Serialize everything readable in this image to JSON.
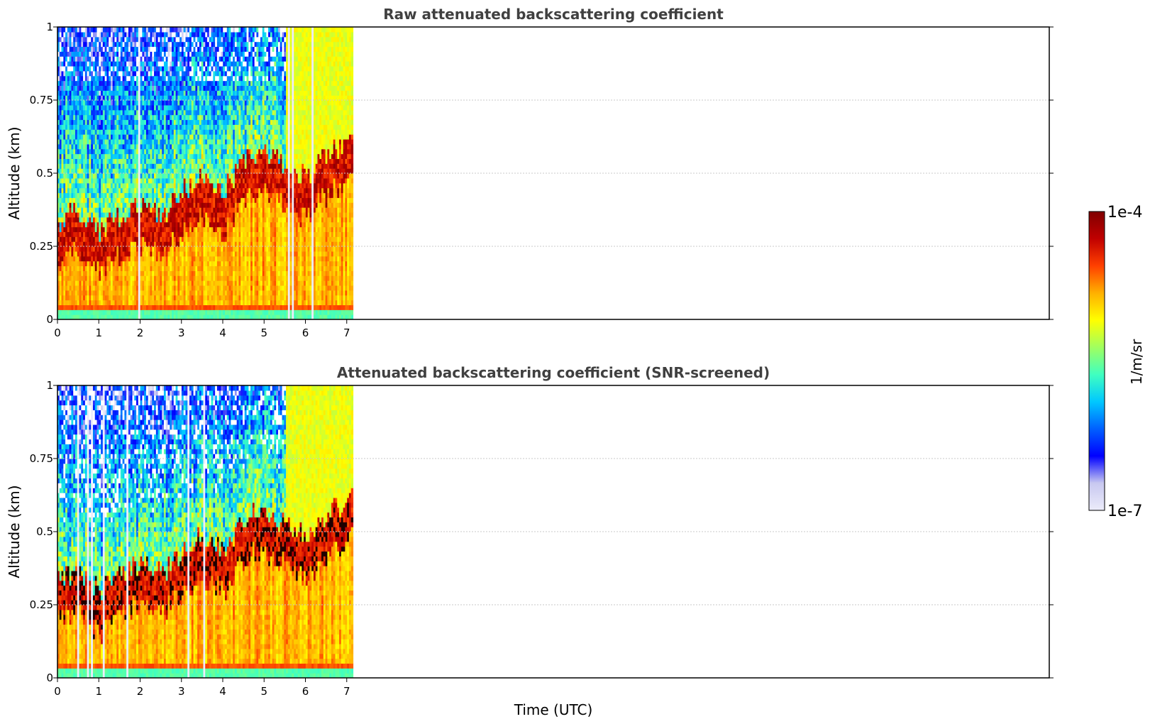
{
  "chart_data": [
    {
      "type": "heatmap",
      "title": "Raw attenuated backscattering coefficient",
      "xlabel": "",
      "ylabel": "Altitude (km)",
      "xlim": [
        0,
        24
      ],
      "ylim": [
        0,
        1
      ],
      "x_ticks": [
        "0",
        "1",
        "2",
        "3",
        "4",
        "5",
        "6",
        "7"
      ],
      "y_ticks": [
        "0",
        "0.25",
        "0.5",
        "0.75",
        "1"
      ],
      "grid": true,
      "data_extent_hours": [
        0,
        7.15
      ],
      "variant": "raw",
      "boundary_layer_top_km": [
        [
          0,
          0.29
        ],
        [
          0.5,
          0.33
        ],
        [
          1,
          0.24
        ],
        [
          1.5,
          0.31
        ],
        [
          2,
          0.35
        ],
        [
          2.5,
          0.3
        ],
        [
          3,
          0.39
        ],
        [
          3.5,
          0.44
        ],
        [
          4,
          0.39
        ],
        [
          4.5,
          0.5
        ],
        [
          5,
          0.53
        ],
        [
          5.5,
          0.48
        ],
        [
          6,
          0.44
        ],
        [
          6.5,
          0.52
        ],
        [
          7.1,
          0.57
        ]
      ]
    },
    {
      "type": "heatmap",
      "title": "Attenuated backscattering coefficient (SNR-screened)",
      "xlabel": "Time (UTC)",
      "ylabel": "Altitude (km)",
      "xlim": [
        0,
        24
      ],
      "ylim": [
        0,
        1
      ],
      "x_ticks": [
        "0",
        "1",
        "2",
        "3",
        "4",
        "5",
        "6",
        "7"
      ],
      "y_ticks": [
        "0",
        "0.25",
        "0.5",
        "0.75",
        "1"
      ],
      "grid": true,
      "data_extent_hours": [
        0,
        7.15
      ],
      "variant": "screened",
      "boundary_layer_top_km": [
        [
          0,
          0.29
        ],
        [
          0.5,
          0.33
        ],
        [
          1,
          0.24
        ],
        [
          1.5,
          0.31
        ],
        [
          2,
          0.35
        ],
        [
          2.5,
          0.3
        ],
        [
          3,
          0.39
        ],
        [
          3.5,
          0.44
        ],
        [
          4,
          0.39
        ],
        [
          4.5,
          0.5
        ],
        [
          5,
          0.53
        ],
        [
          5.5,
          0.48
        ],
        [
          6,
          0.44
        ],
        [
          6.5,
          0.52
        ],
        [
          7.1,
          0.57
        ]
      ]
    }
  ],
  "colorbar": {
    "max_label": "1e-4",
    "min_label": "1e-7",
    "unit_label": "1/m/sr",
    "scale": "log",
    "colormap": [
      "#ececfa",
      "#c8c8f0",
      "#0000ff",
      "#0060ff",
      "#00c8ff",
      "#40ffc0",
      "#a0ff60",
      "#ffff00",
      "#ffb000",
      "#ff4000",
      "#c00000",
      "#800000"
    ]
  }
}
